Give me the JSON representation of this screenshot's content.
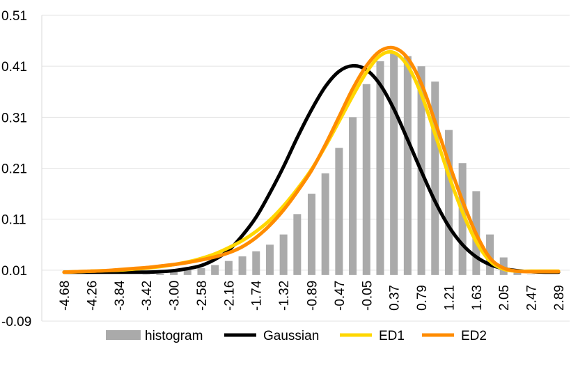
{
  "chart_data": {
    "type": "bar+line",
    "title": "",
    "xlabel": "",
    "ylabel": "",
    "ylim": [
      -0.09,
      0.51
    ],
    "yticks": [
      "0.51",
      "0.41",
      "0.31",
      "0.21",
      "0.11",
      "0.01",
      "-0.09"
    ],
    "ytick_values": [
      0.51,
      0.41,
      0.31,
      0.21,
      0.11,
      0.01,
      -0.09
    ],
    "xtick_labels": [
      "-4.68",
      "-4.26",
      "-3.84",
      "-3.42",
      "-3.00",
      "-2.58",
      "-2.16",
      "-1.74",
      "-1.32",
      "-0.89",
      "-0.47",
      "-0.05",
      "0.37",
      "0.79",
      "1.21",
      "1.63",
      "2.05",
      "2.47",
      "2.89"
    ],
    "x": [
      -4.68,
      -4.47,
      -4.26,
      -4.05,
      -3.84,
      -3.63,
      -3.42,
      -3.21,
      -3.0,
      -2.79,
      -2.58,
      -2.37,
      -2.16,
      -1.95,
      -1.74,
      -1.53,
      -1.32,
      -1.11,
      -0.89,
      -0.68,
      -0.47,
      -0.26,
      -0.05,
      0.16,
      0.37,
      0.58,
      0.79,
      1.0,
      1.21,
      1.42,
      1.63,
      1.84,
      2.05,
      2.26,
      2.47,
      2.68,
      2.89
    ],
    "series": [
      {
        "name": "histogram",
        "kind": "bar",
        "color": "#aaaaaa",
        "values": [
          0,
          0,
          0,
          0,
          0,
          0,
          0.001,
          0.003,
          0.006,
          0.01,
          0.014,
          0.02,
          0.028,
          0.037,
          0.047,
          0.06,
          0.08,
          0.12,
          0.16,
          0.2,
          0.25,
          0.31,
          0.375,
          0.42,
          0.435,
          0.43,
          0.41,
          0.38,
          0.285,
          0.22,
          0.165,
          0.08,
          0.035,
          0.01,
          0.001,
          0.0,
          0.0
        ]
      },
      {
        "name": "Gaussian",
        "kind": "line",
        "color": "#000000",
        "values": [
          0.0,
          0.0,
          0.0,
          0.0,
          0.0,
          0.0,
          0.0,
          0.001,
          0.003,
          0.007,
          0.013,
          0.025,
          0.043,
          0.072,
          0.108,
          0.155,
          0.207,
          0.264,
          0.319,
          0.364,
          0.394,
          0.405,
          0.397,
          0.368,
          0.32,
          0.26,
          0.198,
          0.139,
          0.09,
          0.054,
          0.03,
          0.015,
          0.007,
          0.003,
          0.001,
          0.0,
          0.0
        ]
      },
      {
        "name": "ED1",
        "kind": "line",
        "color": "#ffd700",
        "values": [
          0.0,
          0.001,
          0.002,
          0.003,
          0.004,
          0.006,
          0.008,
          0.011,
          0.015,
          0.02,
          0.027,
          0.036,
          0.048,
          0.062,
          0.08,
          0.102,
          0.13,
          0.163,
          0.202,
          0.247,
          0.296,
          0.346,
          0.392,
          0.425,
          0.431,
          0.405,
          0.349,
          0.271,
          0.19,
          0.118,
          0.06,
          0.022,
          0.006,
          0.002,
          0.002,
          0.002,
          0.002
        ]
      },
      {
        "name": "ED2",
        "kind": "line",
        "color": "#ff8c00",
        "values": [
          0.0,
          0.001,
          0.002,
          0.003,
          0.005,
          0.007,
          0.009,
          0.012,
          0.015,
          0.019,
          0.024,
          0.03,
          0.038,
          0.05,
          0.068,
          0.092,
          0.122,
          0.158,
          0.2,
          0.25,
          0.305,
          0.36,
          0.405,
          0.434,
          0.44,
          0.42,
          0.37,
          0.295,
          0.215,
          0.14,
          0.075,
          0.028,
          0.008,
          0.002,
          0.001,
          0.001,
          0.001
        ]
      }
    ],
    "legend": [
      "histogram",
      "Gaussian",
      "ED1",
      "ED2"
    ],
    "legend_position": "bottom",
    "grid": true
  }
}
